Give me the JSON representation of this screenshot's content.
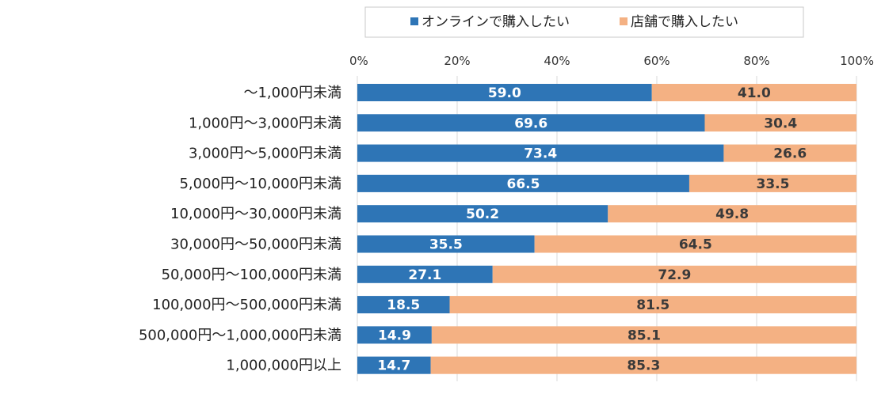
{
  "chart_data": {
    "type": "bar",
    "orientation": "horizontal",
    "stacked": true,
    "percent_stacked": true,
    "categories": [
      "～1,000円未満",
      "1,000円～3,000円未満",
      "3,000円～5,000円未満",
      "5,000円～10,000円未満",
      "10,000円～30,000円未満",
      "30,000円～50,000円未満",
      "50,000円～100,000円未満",
      "100,000円～500,000円未満",
      "500,000円～1,000,000円未満",
      "1,000,000円以上"
    ],
    "series": [
      {
        "name": "オンラインで購入したい",
        "color": "#2E75B6",
        "values": [
          59.0,
          69.6,
          73.4,
          66.5,
          50.2,
          35.5,
          27.1,
          18.5,
          14.9,
          14.7
        ],
        "labels": [
          "59.0",
          "69.6",
          "73.4",
          "66.5",
          "50.2",
          "35.5",
          "27.1",
          "18.5",
          "14.9",
          "14.7"
        ]
      },
      {
        "name": "店舗で購入したい",
        "color": "#F4B183",
        "values": [
          41.0,
          30.4,
          26.6,
          33.5,
          49.8,
          64.5,
          72.9,
          81.5,
          85.1,
          85.3
        ],
        "labels": [
          "41.0",
          "30.4",
          "26.6",
          "33.5",
          "49.8",
          "64.5",
          "72.9",
          "81.5",
          "85.1",
          "85.3"
        ]
      }
    ],
    "xlim": [
      0,
      100
    ],
    "x_ticks": [
      0,
      20,
      40,
      60,
      80,
      100
    ],
    "x_tick_labels": [
      "0%",
      "20%",
      "40%",
      "60%",
      "80%",
      "100%"
    ],
    "x_axis_position": "top",
    "grid": true,
    "legend_position": "top",
    "title": "",
    "xlabel": "",
    "ylabel": ""
  }
}
